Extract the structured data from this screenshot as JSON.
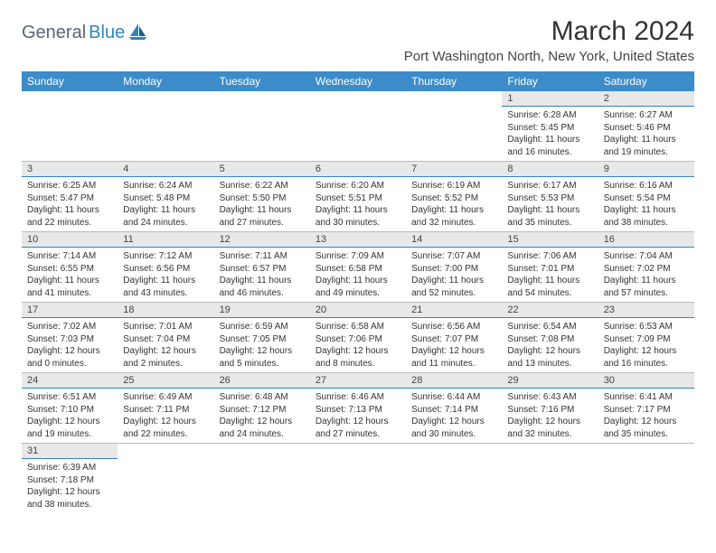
{
  "logo": {
    "gray": "General",
    "blue": "Blue"
  },
  "title": "March 2024",
  "location": "Port Washington North, New York, United States",
  "weekdays": [
    "Sunday",
    "Monday",
    "Tuesday",
    "Wednesday",
    "Thursday",
    "Friday",
    "Saturday"
  ],
  "colors": {
    "header_bg": "#3b8cc9",
    "daynum_bg": "#e8e8e8",
    "accent_line": "#2e86c1",
    "logo_gray": "#5a6570",
    "logo_blue": "#2e86c1"
  },
  "weeks": [
    [
      null,
      null,
      null,
      null,
      null,
      {
        "n": "1",
        "sr": "6:28 AM",
        "ss": "5:45 PM",
        "dl": "11 hours and 16 minutes."
      },
      {
        "n": "2",
        "sr": "6:27 AM",
        "ss": "5:46 PM",
        "dl": "11 hours and 19 minutes."
      }
    ],
    [
      {
        "n": "3",
        "sr": "6:25 AM",
        "ss": "5:47 PM",
        "dl": "11 hours and 22 minutes."
      },
      {
        "n": "4",
        "sr": "6:24 AM",
        "ss": "5:48 PM",
        "dl": "11 hours and 24 minutes."
      },
      {
        "n": "5",
        "sr": "6:22 AM",
        "ss": "5:50 PM",
        "dl": "11 hours and 27 minutes."
      },
      {
        "n": "6",
        "sr": "6:20 AM",
        "ss": "5:51 PM",
        "dl": "11 hours and 30 minutes."
      },
      {
        "n": "7",
        "sr": "6:19 AM",
        "ss": "5:52 PM",
        "dl": "11 hours and 32 minutes."
      },
      {
        "n": "8",
        "sr": "6:17 AM",
        "ss": "5:53 PM",
        "dl": "11 hours and 35 minutes."
      },
      {
        "n": "9",
        "sr": "6:16 AM",
        "ss": "5:54 PM",
        "dl": "11 hours and 38 minutes."
      }
    ],
    [
      {
        "n": "10",
        "sr": "7:14 AM",
        "ss": "6:55 PM",
        "dl": "11 hours and 41 minutes."
      },
      {
        "n": "11",
        "sr": "7:12 AM",
        "ss": "6:56 PM",
        "dl": "11 hours and 43 minutes."
      },
      {
        "n": "12",
        "sr": "7:11 AM",
        "ss": "6:57 PM",
        "dl": "11 hours and 46 minutes."
      },
      {
        "n": "13",
        "sr": "7:09 AM",
        "ss": "6:58 PM",
        "dl": "11 hours and 49 minutes."
      },
      {
        "n": "14",
        "sr": "7:07 AM",
        "ss": "7:00 PM",
        "dl": "11 hours and 52 minutes."
      },
      {
        "n": "15",
        "sr": "7:06 AM",
        "ss": "7:01 PM",
        "dl": "11 hours and 54 minutes."
      },
      {
        "n": "16",
        "sr": "7:04 AM",
        "ss": "7:02 PM",
        "dl": "11 hours and 57 minutes."
      }
    ],
    [
      {
        "n": "17",
        "sr": "7:02 AM",
        "ss": "7:03 PM",
        "dl": "12 hours and 0 minutes."
      },
      {
        "n": "18",
        "sr": "7:01 AM",
        "ss": "7:04 PM",
        "dl": "12 hours and 2 minutes."
      },
      {
        "n": "19",
        "sr": "6:59 AM",
        "ss": "7:05 PM",
        "dl": "12 hours and 5 minutes."
      },
      {
        "n": "20",
        "sr": "6:58 AM",
        "ss": "7:06 PM",
        "dl": "12 hours and 8 minutes."
      },
      {
        "n": "21",
        "sr": "6:56 AM",
        "ss": "7:07 PM",
        "dl": "12 hours and 11 minutes."
      },
      {
        "n": "22",
        "sr": "6:54 AM",
        "ss": "7:08 PM",
        "dl": "12 hours and 13 minutes."
      },
      {
        "n": "23",
        "sr": "6:53 AM",
        "ss": "7:09 PM",
        "dl": "12 hours and 16 minutes."
      }
    ],
    [
      {
        "n": "24",
        "sr": "6:51 AM",
        "ss": "7:10 PM",
        "dl": "12 hours and 19 minutes."
      },
      {
        "n": "25",
        "sr": "6:49 AM",
        "ss": "7:11 PM",
        "dl": "12 hours and 22 minutes."
      },
      {
        "n": "26",
        "sr": "6:48 AM",
        "ss": "7:12 PM",
        "dl": "12 hours and 24 minutes."
      },
      {
        "n": "27",
        "sr": "6:46 AM",
        "ss": "7:13 PM",
        "dl": "12 hours and 27 minutes."
      },
      {
        "n": "28",
        "sr": "6:44 AM",
        "ss": "7:14 PM",
        "dl": "12 hours and 30 minutes."
      },
      {
        "n": "29",
        "sr": "6:43 AM",
        "ss": "7:16 PM",
        "dl": "12 hours and 32 minutes."
      },
      {
        "n": "30",
        "sr": "6:41 AM",
        "ss": "7:17 PM",
        "dl": "12 hours and 35 minutes."
      }
    ],
    [
      {
        "n": "31",
        "sr": "6:39 AM",
        "ss": "7:18 PM",
        "dl": "12 hours and 38 minutes."
      },
      null,
      null,
      null,
      null,
      null,
      null
    ]
  ],
  "labels": {
    "sunrise": "Sunrise:",
    "sunset": "Sunset:",
    "daylight": "Daylight:"
  }
}
